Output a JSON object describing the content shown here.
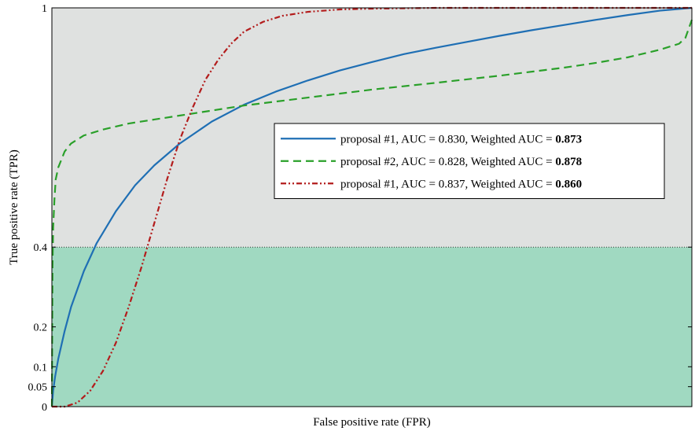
{
  "chart_data": {
    "type": "line",
    "xlabel": "False positive rate (FPR)",
    "ylabel": "True positive rate (TPR)",
    "xlim": [
      0,
      1
    ],
    "ylim": [
      0,
      1
    ],
    "y_ticks": [
      {
        "value": 0,
        "label": "0"
      },
      {
        "value": 0.05,
        "label": "0.05"
      },
      {
        "value": 0.1,
        "label": "0.1"
      },
      {
        "value": 0.2,
        "label": "0.2"
      },
      {
        "value": 0.4,
        "label": "0.4"
      },
      {
        "value": 1,
        "label": "1"
      }
    ],
    "x_ticks": [],
    "shaded_regions": [
      {
        "y_from": 0.4,
        "y_to": 1.0,
        "color": "#dfe1e0"
      },
      {
        "y_from": 0,
        "y_to": 0.4,
        "color": "#a0d9c1"
      }
    ],
    "threshold_line": {
      "y": 0.4,
      "style": "dotted"
    },
    "legend_position": "center-right",
    "series": [
      {
        "name": "proposal #1, AUC = 0.830, Weighted AUC = ",
        "weighted_auc": "0.873",
        "color": "#1f6fb4",
        "dash": "solid",
        "x": [
          0,
          0.002,
          0.005,
          0.01,
          0.02,
          0.03,
          0.05,
          0.07,
          0.1,
          0.13,
          0.16,
          0.2,
          0.25,
          0.3,
          0.35,
          0.4,
          0.45,
          0.5,
          0.55,
          0.6,
          0.65,
          0.7,
          0.75,
          0.8,
          0.85,
          0.9,
          0.95,
          1.0
        ],
        "y": [
          0,
          0.04,
          0.075,
          0.12,
          0.19,
          0.25,
          0.34,
          0.41,
          0.49,
          0.555,
          0.605,
          0.66,
          0.715,
          0.757,
          0.79,
          0.818,
          0.843,
          0.864,
          0.884,
          0.9,
          0.915,
          0.93,
          0.944,
          0.957,
          0.97,
          0.982,
          0.993,
          1.0
        ]
      },
      {
        "name": "proposal #2, AUC = 0.828, Weighted AUC = ",
        "weighted_auc": "0.878",
        "color": "#2aa02a",
        "dash": "dashed",
        "x": [
          0,
          0.001,
          0.002,
          0.004,
          0.006,
          0.01,
          0.02,
          0.03,
          0.05,
          0.08,
          0.12,
          0.16,
          0.2,
          0.3,
          0.4,
          0.5,
          0.6,
          0.7,
          0.8,
          0.85,
          0.9,
          0.95,
          0.98,
          0.99,
          1.0
        ],
        "y": [
          0,
          0.35,
          0.45,
          0.52,
          0.57,
          0.6,
          0.64,
          0.66,
          0.68,
          0.695,
          0.71,
          0.72,
          0.73,
          0.755,
          0.775,
          0.795,
          0.812,
          0.83,
          0.85,
          0.862,
          0.876,
          0.895,
          0.91,
          0.925,
          0.97
        ]
      },
      {
        "name": "proposal #1, AUC = 0.837, Weighted AUC = ",
        "weighted_auc": "0.860",
        "color": "#b31c1c",
        "dash": "dashdot",
        "x": [
          0,
          0.02,
          0.04,
          0.06,
          0.08,
          0.1,
          0.12,
          0.14,
          0.16,
          0.18,
          0.2,
          0.22,
          0.24,
          0.26,
          0.28,
          0.3,
          0.33,
          0.36,
          0.4,
          0.45,
          0.5,
          0.6,
          0.7,
          0.8,
          0.9,
          1.0
        ],
        "y": [
          0,
          0.0,
          0.01,
          0.04,
          0.09,
          0.16,
          0.25,
          0.35,
          0.46,
          0.57,
          0.67,
          0.75,
          0.82,
          0.87,
          0.91,
          0.94,
          0.965,
          0.98,
          0.99,
          0.996,
          0.998,
          1.0,
          1.0,
          1.0,
          1.0,
          1.0
        ]
      }
    ]
  }
}
